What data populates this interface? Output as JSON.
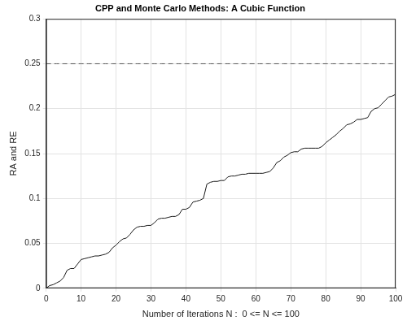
{
  "chart_data": {
    "type": "line",
    "title": "CPP and Monte Carlo Methods: A Cubic Function",
    "x_label": "Number of Iterations N :  0 <= N <= 100",
    "y_label": "RA and RE",
    "x": [
      0,
      1,
      2,
      3,
      4,
      5,
      6,
      7,
      8,
      9,
      10,
      11,
      12,
      13,
      14,
      15,
      16,
      17,
      18,
      19,
      20,
      21,
      22,
      23,
      24,
      25,
      26,
      27,
      28,
      29,
      30,
      31,
      32,
      33,
      34,
      35,
      36,
      37,
      38,
      39,
      40,
      41,
      42,
      43,
      44,
      45,
      46,
      47,
      48,
      49,
      50,
      51,
      52,
      53,
      54,
      55,
      56,
      57,
      58,
      59,
      60,
      61,
      62,
      63,
      64,
      65,
      66,
      67,
      68,
      69,
      70,
      71,
      72,
      73,
      74,
      75,
      76,
      77,
      78,
      79,
      80,
      81,
      82,
      83,
      84,
      85,
      86,
      87,
      88,
      89,
      90,
      91,
      92,
      93,
      94,
      95,
      96,
      97,
      98,
      99,
      100
    ],
    "series": [
      {
        "color": "#1a1a1a",
        "line_style": "solid",
        "values": [
          0,
          0.003,
          0.004,
          0.006,
          0.008,
          0.012,
          0.02,
          0.022,
          0.022,
          0.027,
          0.032,
          0.033,
          0.034,
          0.035,
          0.036,
          0.036,
          0.037,
          0.038,
          0.04,
          0.045,
          0.048,
          0.052,
          0.055,
          0.056,
          0.06,
          0.065,
          0.068,
          0.069,
          0.069,
          0.07,
          0.07,
          0.073,
          0.077,
          0.078,
          0.078,
          0.079,
          0.08,
          0.08,
          0.082,
          0.088,
          0.088,
          0.09,
          0.096,
          0.097,
          0.098,
          0.1,
          0.116,
          0.118,
          0.119,
          0.119,
          0.12,
          0.12,
          0.124,
          0.125,
          0.125,
          0.126,
          0.127,
          0.127,
          0.128,
          0.128,
          0.128,
          0.128,
          0.128,
          0.129,
          0.13,
          0.134,
          0.14,
          0.142,
          0.146,
          0.148,
          0.151,
          0.152,
          0.152,
          0.155,
          0.156,
          0.156,
          0.156,
          0.156,
          0.156,
          0.158,
          0.162,
          0.165,
          0.168,
          0.171,
          0.175,
          0.178,
          0.182,
          0.183,
          0.185,
          0.188,
          0.188,
          0.189,
          0.19,
          0.197,
          0.2,
          0.201,
          0.205,
          0.209,
          0.213,
          0.214,
          0.216
        ]
      },
      {
        "color": "#555555",
        "line_style": "dashed",
        "values": [
          0.25,
          0.25,
          0.25,
          0.25,
          0.25,
          0.25,
          0.25,
          0.25,
          0.25,
          0.25,
          0.25,
          0.25,
          0.25,
          0.25,
          0.25,
          0.25,
          0.25,
          0.25,
          0.25,
          0.25,
          0.25,
          0.25,
          0.25,
          0.25,
          0.25,
          0.25,
          0.25,
          0.25,
          0.25,
          0.25,
          0.25,
          0.25,
          0.25,
          0.25,
          0.25,
          0.25,
          0.25,
          0.25,
          0.25,
          0.25,
          0.25,
          0.25,
          0.25,
          0.25,
          0.25,
          0.25,
          0.25,
          0.25,
          0.25,
          0.25,
          0.25,
          0.25,
          0.25,
          0.25,
          0.25,
          0.25,
          0.25,
          0.25,
          0.25,
          0.25,
          0.25,
          0.25,
          0.25,
          0.25,
          0.25,
          0.25,
          0.25,
          0.25,
          0.25,
          0.25,
          0.25,
          0.25,
          0.25,
          0.25,
          0.25,
          0.25,
          0.25,
          0.25,
          0.25,
          0.25,
          0.25,
          0.25,
          0.25,
          0.25,
          0.25,
          0.25,
          0.25,
          0.25,
          0.25,
          0.25,
          0.25,
          0.25,
          0.25,
          0.25,
          0.25,
          0.25,
          0.25,
          0.25,
          0.25,
          0.25,
          0.25
        ]
      }
    ],
    "xlim": [
      0,
      100
    ],
    "xticks": [
      0,
      10,
      20,
      30,
      40,
      50,
      60,
      70,
      80,
      90,
      100
    ],
    "ylim": [
      0,
      0.3
    ],
    "yticks": [
      0,
      0.05,
      0.1,
      0.15,
      0.2,
      0.25,
      0.3
    ],
    "grid": true
  }
}
